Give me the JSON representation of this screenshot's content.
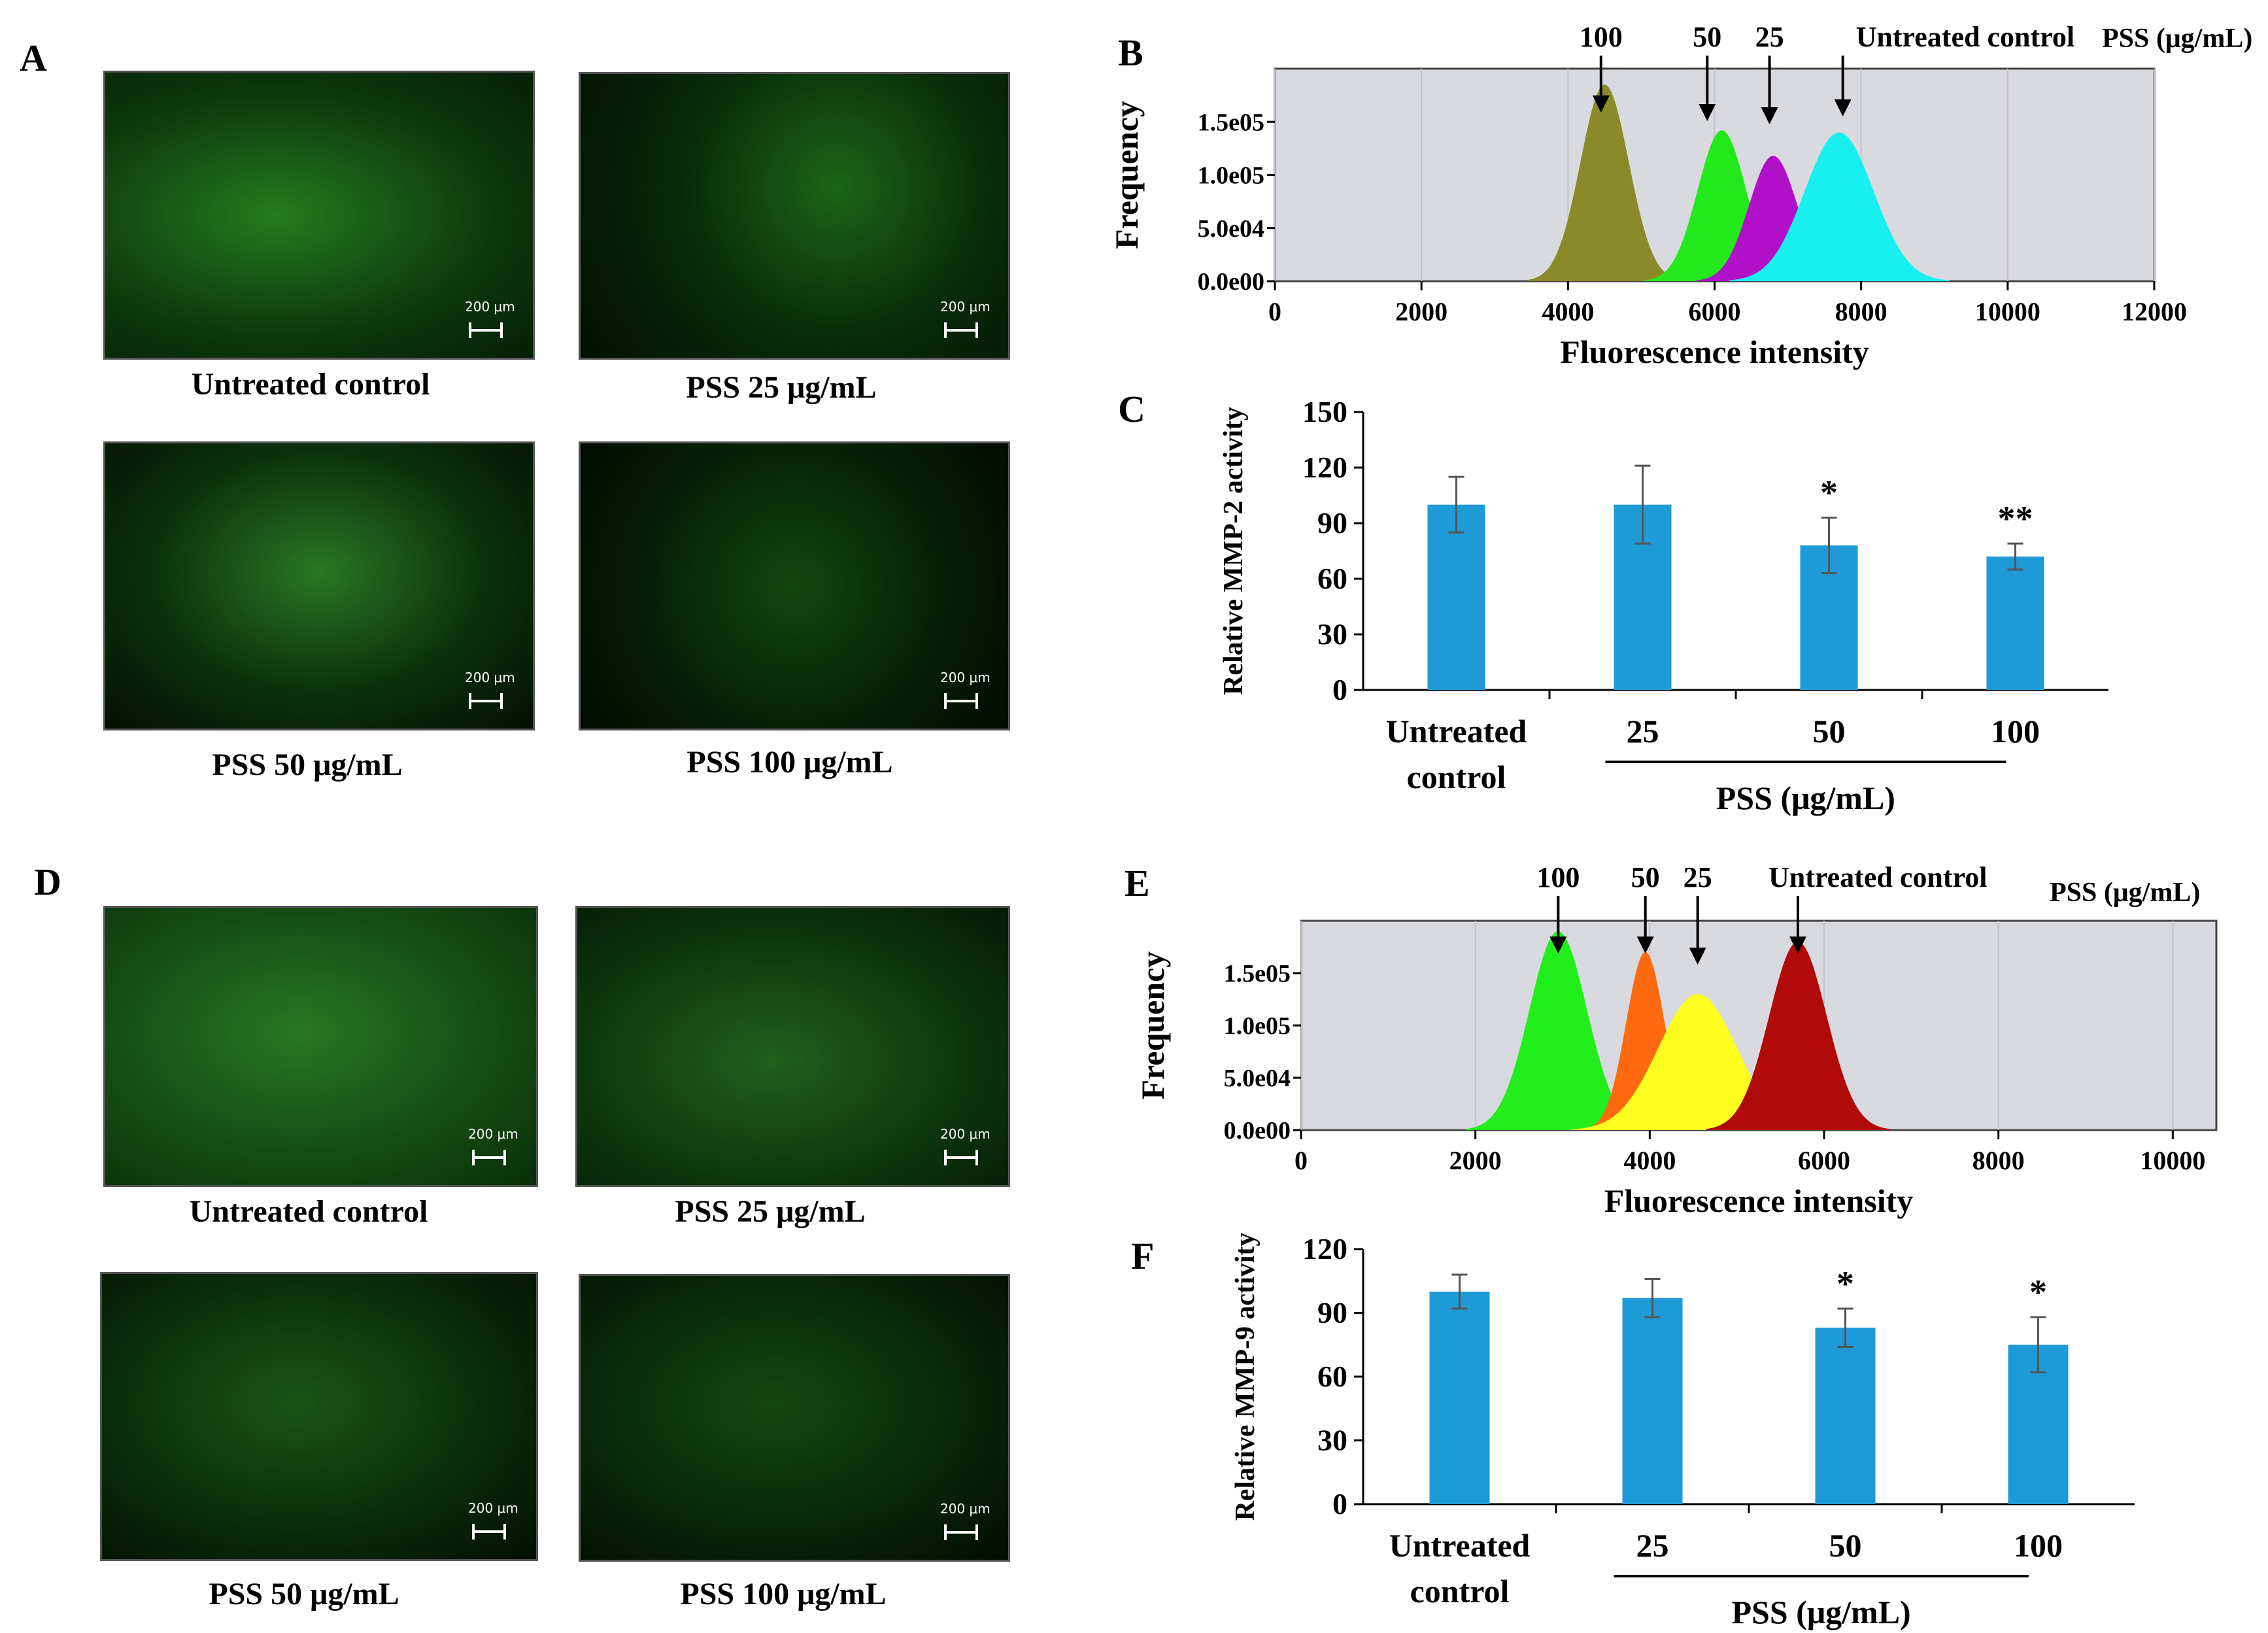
{
  "panels": {
    "A": {
      "letter": "A",
      "images": [
        {
          "caption": "Untreated control",
          "scale": "200 μm"
        },
        {
          "caption": "PSS 25 μg/mL",
          "scale": "200 μm"
        },
        {
          "caption": "PSS 50 μg/mL",
          "scale": "200 μm"
        },
        {
          "caption": "PSS 100 μg/mL",
          "scale": "200 μm"
        }
      ]
    },
    "D": {
      "letter": "D",
      "images": [
        {
          "caption": "Untreated control",
          "scale": "200 μm"
        },
        {
          "caption": "PSS 25 μg/mL",
          "scale": "200 μm"
        },
        {
          "caption": "PSS 50 μg/mL",
          "scale": "200 μm"
        },
        {
          "caption": "PSS 100 μg/mL",
          "scale": "200 μm"
        }
      ]
    }
  },
  "colors": {
    "bar": "#1e9ad6",
    "plot_bg": "#d9dadf",
    "hist_B": [
      "#8b8a2a",
      "#22e81c",
      "#b010c8",
      "#18f0f0"
    ],
    "hist_E": [
      "#22ee1c",
      "#ff6a10",
      "#ffff20",
      "#b00a0a"
    ]
  },
  "chart_data": [
    {
      "id": "B",
      "letter": "B",
      "type": "histogram",
      "xlabel": "Fluorescence intensity",
      "ylabel": "Frequency",
      "xticks": [
        "0",
        "2000",
        "4000",
        "6000",
        "8000",
        "10000",
        "12000"
      ],
      "yticks": [
        "0.0e00",
        "5.0e04",
        "1.0e05",
        "1.5e05"
      ],
      "xlim": [
        0,
        12000
      ],
      "ylim": [
        0,
        200000
      ],
      "legend_title": "PSS (μg/mL)",
      "series": [
        {
          "name": "100",
          "peak_x": 4500,
          "peak_y": 185000
        },
        {
          "name": "50",
          "peak_x": 6100,
          "peak_y": 142000
        },
        {
          "name": "25",
          "peak_x": 6800,
          "peak_y": 118000
        },
        {
          "name": "Untreated control",
          "peak_x": 7700,
          "peak_y": 140000
        }
      ]
    },
    {
      "id": "C",
      "letter": "C",
      "type": "bar",
      "ylabel": "Relative MMP-2 activity",
      "ylim": [
        0,
        150
      ],
      "yticks": [
        "0",
        "30",
        "60",
        "90",
        "120",
        "150"
      ],
      "categories": [
        "Untreated control",
        "25",
        "50",
        "100"
      ],
      "values": [
        100,
        100,
        78,
        72
      ],
      "errors": [
        15,
        21,
        15,
        7
      ],
      "significance": [
        "",
        "",
        "*",
        "**"
      ],
      "group_label": "PSS (μg/mL)"
    },
    {
      "id": "E",
      "letter": "E",
      "type": "histogram",
      "xlabel": "Fluorescence intensity",
      "ylabel": "Frequency",
      "xticks": [
        "0",
        "2000",
        "4000",
        "6000",
        "8000",
        "10000"
      ],
      "yticks": [
        "0.0e00",
        "5.0e04",
        "1.0e05",
        "1.5e05"
      ],
      "xlim": [
        0,
        10500
      ],
      "ylim": [
        0,
        200000
      ],
      "legend_title": "PSS (μg/mL)",
      "series": [
        {
          "name": "100",
          "peak_x": 2950,
          "peak_y": 190000
        },
        {
          "name": "50",
          "peak_x": 3950,
          "peak_y": 170000
        },
        {
          "name": "25",
          "peak_x": 4550,
          "peak_y": 130000
        },
        {
          "name": "Untreated control",
          "peak_x": 5700,
          "peak_y": 180000
        }
      ]
    },
    {
      "id": "F",
      "letter": "F",
      "type": "bar",
      "ylabel": "Relative MMP-9 activity",
      "ylim": [
        0,
        120
      ],
      "yticks": [
        "0",
        "30",
        "60",
        "90",
        "120"
      ],
      "categories": [
        "Untreated control",
        "25",
        "50",
        "100"
      ],
      "values": [
        100,
        97,
        83,
        75
      ],
      "errors": [
        8,
        9,
        9,
        13
      ],
      "significance": [
        "",
        "",
        "*",
        "*"
      ],
      "group_label": "PSS (μg/mL)"
    }
  ]
}
